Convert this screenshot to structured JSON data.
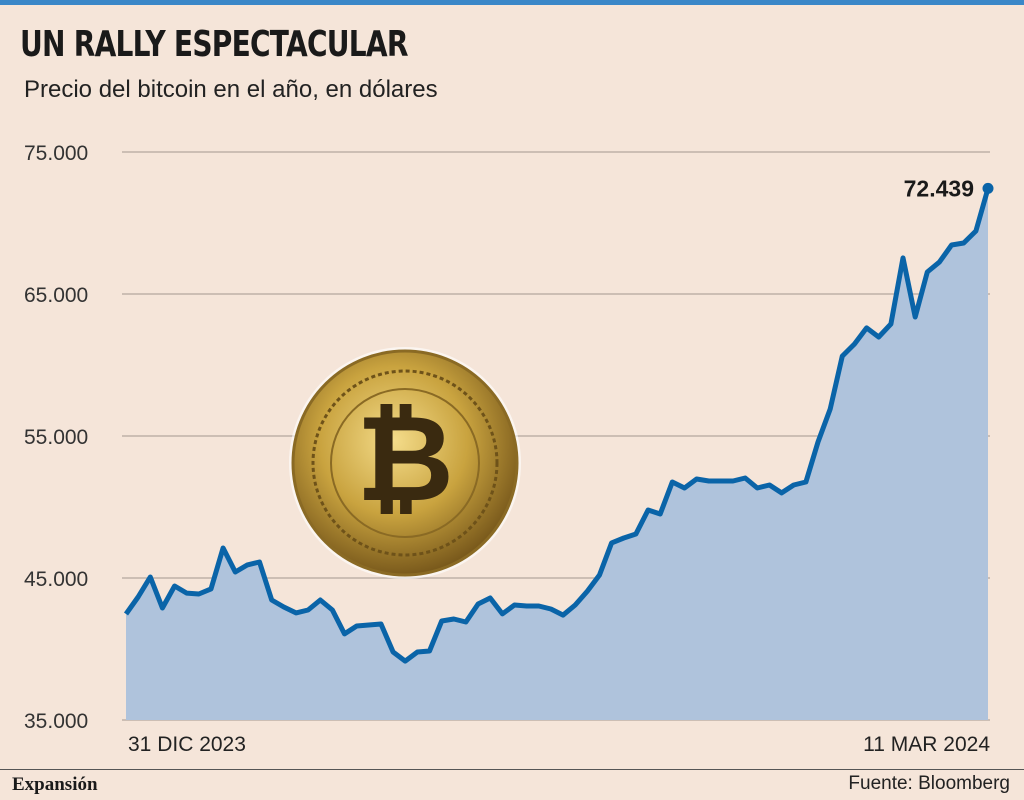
{
  "title": "UN RALLY ESPECTACULAR",
  "subtitle": "Precio del bitcoin en el año, en dólares",
  "footer": {
    "brand": "Expansión",
    "source": "Fuente: Bloomberg"
  },
  "colors": {
    "line": "#0a64a8",
    "area": "#afc3dc",
    "background": "#f5e5d9",
    "grid": "#b5a89e",
    "top_bar": "#3a87c8"
  },
  "illustration": "bitcoin-coin",
  "chart_data": {
    "type": "area",
    "title": "UN RALLY ESPECTACULAR",
    "subtitle": "Precio del bitcoin en el año, en dólares",
    "ylim": [
      35000,
      75000
    ],
    "yticks": [
      35000,
      45000,
      55000,
      65000,
      75000
    ],
    "ytick_labels": [
      "35.000",
      "45.000",
      "55.000",
      "65.000",
      "75.000"
    ],
    "x_labels": [
      "31 DIC 2023",
      "11 MAR 2024"
    ],
    "grid": "horizontal",
    "final_label": "72.439",
    "values": [
      42465,
      43660,
      45070,
      42890,
      44440,
      43940,
      43870,
      44230,
      47110,
      45420,
      45920,
      46130,
      43450,
      42960,
      42540,
      42750,
      43450,
      42750,
      41060,
      41620,
      41690,
      41760,
      39790,
      39150,
      39790,
      39860,
      41970,
      42110,
      41900,
      43170,
      43590,
      42470,
      43100,
      43030,
      43030,
      42820,
      42390,
      43100,
      44080,
      45210,
      47470,
      47820,
      48100,
      49790,
      49510,
      51760,
      51340,
      51970,
      51830,
      51830,
      51830,
      52040,
      51340,
      51550,
      50990,
      51550,
      51760,
      54580,
      56900,
      60630,
      61480,
      62610,
      61970,
      62890,
      67540,
      63380,
      66550,
      67250,
      68450,
      68590,
      69440,
      72439
    ]
  }
}
